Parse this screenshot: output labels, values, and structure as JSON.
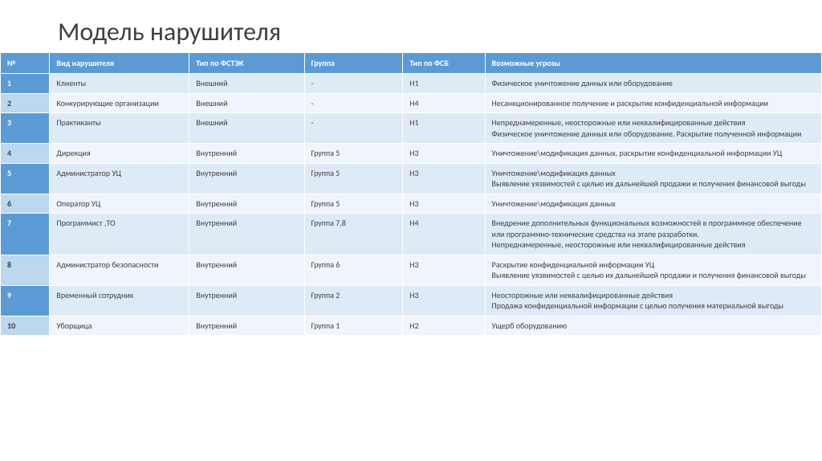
{
  "title": "Модель нарушителя",
  "columns": [
    "№",
    "Вид нарушителя",
    "Тип по ФСТЭК",
    "Группа",
    "Тип по ФСБ",
    "Возможные угрозы"
  ],
  "rows": [
    {
      "num": "1",
      "type": "Клиенты",
      "fstek": "Внешний",
      "group": "-",
      "fsb": "Н1",
      "threat": "Физическое уничтожение данных или оборудование"
    },
    {
      "num": "2",
      "type": "Конкурирующие организации",
      "fstek": "Внешний",
      "group": "-",
      "fsb": "Н4",
      "threat": "Несанкционированное получение и раскрытие конфиденциальной информации"
    },
    {
      "num": "3",
      "type": "Практиканты",
      "fstek": "Внешний",
      "group": "-",
      "fsb": "Н1",
      "threat": "Непреднамеренные, неосторожные или неквалифицированные действия\nФизическое уничтожение данных или оборудование. Раскрытие полученной информации"
    },
    {
      "num": "4",
      "type": "Дирекция",
      "fstek": "Внутренний",
      "group": "Группа 5",
      "fsb": "Н3",
      "threat": "Уничтожение\\модификация данных, раскрытие конфиденциальной информации УЦ"
    },
    {
      "num": "5",
      "type": "Администратор УЦ",
      "fstek": "Внутренний",
      "group": "Группа 5",
      "fsb": "Н3",
      "threat": "Уничтожение\\модификация данных\nВыявление уязвимостей с целью их дальнейшей продажи и получения финансовой выгоды"
    },
    {
      "num": "6",
      "type": "Оператор УЦ",
      "fstek": "Внутренний",
      "group": "Группа 5",
      "fsb": "Н3",
      "threat": "Уничтожение\\модификация данных"
    },
    {
      "num": "7",
      "type": "Программист ,ТО",
      "fstek": "Внутренний",
      "group": "Группа 7,8",
      "fsb": "Н4",
      "threat": "Внедрение дополнительных функциональных возможностей в программное обеспечение или программно-технические средства на этапе разработки.\nНепреднамеренные, неосторожные или неквалифицированные действия"
    },
    {
      "num": "8",
      "type": "Администратор безопасности",
      "fstek": "Внутренний",
      "group": "Группа 6",
      "fsb": "Н3",
      "threat": "Раскрытие конфиденциальной информации УЦ\nВыявление уязвимостей с целью их дальнейшей продажи и получения финансовой выгоды"
    },
    {
      "num": "9",
      "type": "Временный сотрудник",
      "fstek": "Внутренний",
      "group": "Группа 2",
      "fsb": "Н3",
      "threat": "Неосторожные или неквалифицированные действия\nПродажа конфиденциальной информации с целью получения материальной выгоды"
    },
    {
      "num": "10",
      "type": "Уборщица",
      "fstek": "Внутренний",
      "group": "Группа 1",
      "fsb": "Н2",
      "threat": "Ущерб оборудованию"
    }
  ],
  "style": {
    "header_bg": "#5b9bd5",
    "header_fg": "#ffffff",
    "odd_numcell_bg": "#5b9bd5",
    "even_numcell_bg": "#bdd7ee",
    "odd_cell_bg": "#deebf7",
    "even_cell_bg": "#eff5fb",
    "title_color": "#404040",
    "title_fontsize": 32,
    "cell_fontsize": 10,
    "column_widths_pct": [
      6,
      17,
      14,
      12,
      10,
      41
    ]
  }
}
